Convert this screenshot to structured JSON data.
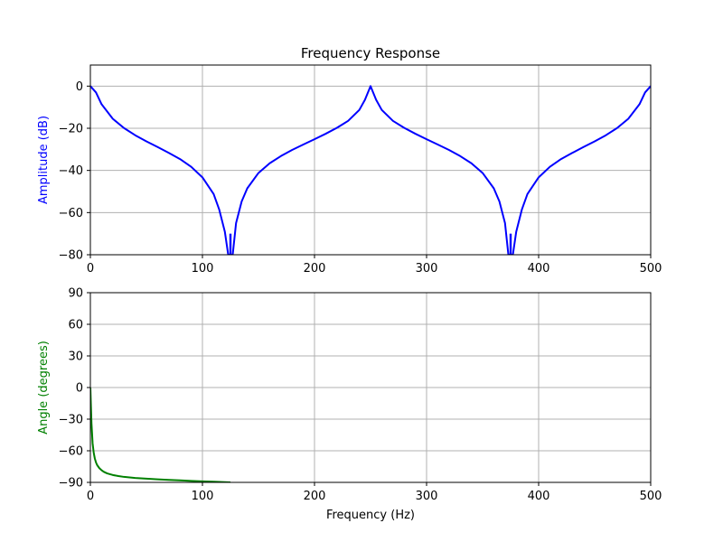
{
  "figure": {
    "title": "Frequency Response"
  },
  "chart_data": [
    {
      "type": "line",
      "panel": "amplitude",
      "title": "Frequency Response",
      "xlabel": "",
      "ylabel": "Amplitude (dB)",
      "xlim": [
        0,
        500
      ],
      "ylim": [
        -80,
        10
      ],
      "xticks": [
        0,
        100,
        200,
        300,
        400,
        500
      ],
      "xtick_labels": [
        "0",
        "100",
        "200",
        "300",
        "400",
        "500"
      ],
      "yticks": [
        0,
        -20,
        -40,
        -60,
        -80
      ],
      "ytick_labels": [
        "0",
        "−20",
        "−40",
        "−60",
        "−80"
      ],
      "grid": true,
      "label_color": "#0000ff",
      "series": [
        {
          "color": "#0000ff",
          "notch_frequencies": [
            125,
            375
          ],
          "peak_frequencies": [
            0,
            250,
            500
          ],
          "x": [
            0,
            5,
            10,
            20,
            30,
            40,
            50,
            60,
            70,
            80,
            90,
            100,
            110,
            115,
            120,
            123,
            124.5,
            125,
            125.5,
            127,
            130,
            135,
            140,
            150,
            160,
            170,
            180,
            190,
            200,
            210,
            220,
            230,
            240,
            245,
            250,
            255,
            260,
            270,
            280,
            290,
            300,
            310,
            320,
            330,
            340,
            350,
            360,
            365,
            370,
            373,
            374.5,
            375,
            375.5,
            377,
            380,
            385,
            390,
            400,
            410,
            420,
            430,
            440,
            450,
            460,
            470,
            480,
            490,
            495,
            500
          ],
          "y": [
            0,
            -3,
            -8.6,
            -15.5,
            -19.9,
            -23.3,
            -26.2,
            -28.9,
            -31.7,
            -34.6,
            -38.3,
            -43.3,
            -51.2,
            -58.6,
            -69.1,
            -80,
            -80,
            -80,
            -80,
            -80,
            -65,
            -54.7,
            -48.5,
            -41.2,
            -36.6,
            -33.2,
            -30.3,
            -27.7,
            -25.2,
            -22.6,
            -19.8,
            -16.5,
            -11.3,
            -6.5,
            0,
            -6.5,
            -11.3,
            -16.5,
            -19.8,
            -22.6,
            -25.2,
            -27.7,
            -30.3,
            -33.2,
            -36.6,
            -41.2,
            -48.5,
            -54.7,
            -65,
            -80,
            -80,
            -80,
            -80,
            -80,
            -69.1,
            -58.6,
            -51.2,
            -43.3,
            -38.3,
            -34.6,
            -31.7,
            -28.9,
            -26.2,
            -23.3,
            -19.9,
            -15.5,
            -8.6,
            -3,
            0
          ]
        }
      ]
    },
    {
      "type": "line",
      "panel": "angle",
      "xlabel": "Frequency (Hz)",
      "ylabel": "Angle (degrees)",
      "xlim": [
        0,
        500
      ],
      "ylim": [
        -90,
        90
      ],
      "xticks": [
        0,
        100,
        200,
        300,
        400,
        500
      ],
      "xtick_labels": [
        "0",
        "100",
        "200",
        "300",
        "400",
        "500"
      ],
      "yticks": [
        90,
        60,
        30,
        0,
        -30,
        -60,
        -90
      ],
      "ytick_labels": [
        "90",
        "60",
        "30",
        "0",
        "−30",
        "−60",
        "−90"
      ],
      "grid": true,
      "label_color": "#008000",
      "series": [
        {
          "color": "#008000",
          "x": [
            0,
            0.5,
            1,
            2,
            3,
            4,
            5,
            6,
            8,
            10,
            12,
            15,
            20,
            25,
            30,
            40,
            50,
            60,
            70,
            80,
            90,
            100,
            110,
            120,
            125
          ],
          "y": [
            0,
            -18,
            -34,
            -53,
            -62,
            -67.5,
            -71,
            -73.5,
            -76.5,
            -78.5,
            -80,
            -81.5,
            -83,
            -84,
            -84.8,
            -85.8,
            -86.5,
            -87.1,
            -87.6,
            -88.1,
            -88.6,
            -89,
            -89.4,
            -89.8,
            -90
          ]
        }
      ]
    }
  ]
}
